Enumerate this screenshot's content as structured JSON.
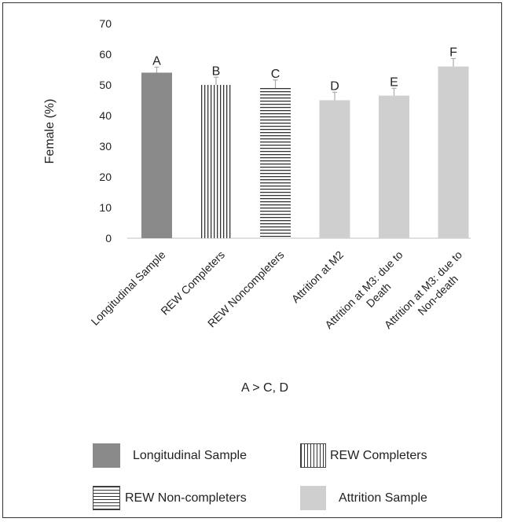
{
  "chart_data": {
    "type": "bar",
    "ylabel": "Female (%)",
    "xlabel": "A > C, D",
    "ylim": [
      0,
      70
    ],
    "yticks": [
      0,
      10,
      20,
      30,
      40,
      50,
      60,
      70
    ],
    "grid": false,
    "categories": [
      "Longitudinal Sample",
      "REW Completers",
      "REW Noncompleters",
      "Attrition at M2",
      "Attrition at M3: due to Death",
      "Attrition at M3: due to Non-death"
    ],
    "values": [
      54,
      50,
      49,
      45,
      46.5,
      56
    ],
    "errors": [
      1.8,
      2.5,
      2.6,
      2.6,
      2.4,
      2.6
    ],
    "bar_letters": [
      "A",
      "B",
      "C",
      "D",
      "E",
      "F"
    ],
    "bar_styles": [
      "solid-dark",
      "vstripe",
      "hstripe",
      "solid-light",
      "solid-light",
      "solid-light"
    ],
    "colors": {
      "dark": "#8a8a8a",
      "light": "#cfcfcf",
      "stripe": "#333333",
      "error": "#aaaaaa"
    }
  },
  "legend": [
    {
      "label": "Longitudinal Sample",
      "style": "solid-dark"
    },
    {
      "label": "REW Completers",
      "style": "vstripe"
    },
    {
      "label": "REW Non-completers",
      "style": "hstripe"
    },
    {
      "label": "Attrition Sample",
      "style": "solid-light"
    }
  ]
}
